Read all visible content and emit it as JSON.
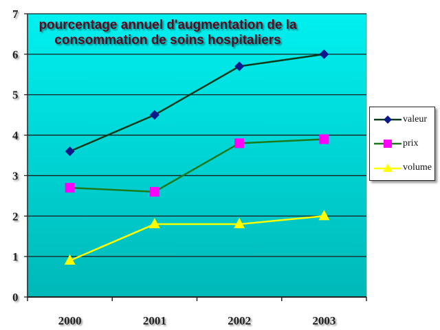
{
  "chart_data": {
    "type": "line",
    "title": "pourcentage annuel d'augmentation de la consommation de soins hospitaliers",
    "title_lines": [
      "pourcentage annuel d'augmentation de la",
      "consommation de soins hospitaliers"
    ],
    "categories": [
      "2000",
      "2001",
      "2002",
      "2003"
    ],
    "yticks": [
      "0",
      "1",
      "2",
      "3",
      "4",
      "5",
      "6",
      "7"
    ],
    "ylim": [
      0,
      7
    ],
    "grid": true,
    "legend_position": "right",
    "series": [
      {
        "name": "valeur",
        "values": [
          3.6,
          4.5,
          5.7,
          6.0
        ],
        "line_color": "#0a3a1a",
        "marker_color": "#0a1a8a",
        "marker": "diamond"
      },
      {
        "name": "prix",
        "values": [
          2.7,
          2.6,
          3.8,
          3.9
        ],
        "line_color": "#1a7a1a",
        "marker_color": "#ff00ff",
        "marker": "square"
      },
      {
        "name": "volume",
        "values": [
          0.9,
          1.8,
          1.8,
          2.0
        ],
        "line_color": "#ffff00",
        "marker_color": "#ffff00",
        "marker": "triangle"
      }
    ]
  }
}
